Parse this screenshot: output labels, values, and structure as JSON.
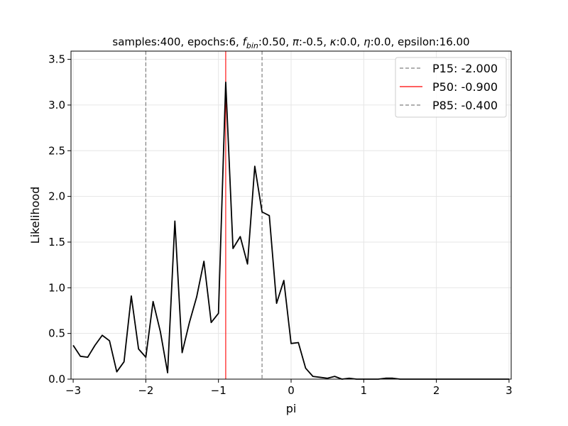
{
  "chart_data": {
    "type": "line",
    "title_parts": [
      {
        "text": "samples:400, epochs:6, ",
        "italic": false
      },
      {
        "text": "f",
        "italic": true
      },
      {
        "text": "bin",
        "italic": true,
        "sub": true
      },
      {
        "text": ":0.50, ",
        "italic": false
      },
      {
        "text": "π",
        "italic": true
      },
      {
        "text": ":-0.5, ",
        "italic": false
      },
      {
        "text": "κ",
        "italic": true
      },
      {
        "text": ":0.0, ",
        "italic": false
      },
      {
        "text": "η",
        "italic": true
      },
      {
        "text": ":0.0, epsilon:16.00",
        "italic": false
      }
    ],
    "xlabel": "pi",
    "ylabel": "Likelihood",
    "xlim": [
      -3.03,
      3.03
    ],
    "ylim": [
      0,
      3.59
    ],
    "xticks": [
      -3,
      -2,
      -1,
      0,
      1,
      2,
      3
    ],
    "xtick_labels": [
      "−3",
      "−2",
      "−1",
      "0",
      "1",
      "2",
      "3"
    ],
    "yticks": [
      0,
      0.5,
      1.0,
      1.5,
      2.0,
      2.5,
      3.0,
      3.5
    ],
    "ytick_labels": [
      "0.0",
      "0.5",
      "1.0",
      "1.5",
      "2.0",
      "2.5",
      "3.0",
      "3.5"
    ],
    "grid": true,
    "legend_position": "top-right",
    "series": [
      {
        "color": "#000000",
        "x": [
          -3.0,
          -2.9,
          -2.8,
          -2.7,
          -2.6,
          -2.5,
          -2.4,
          -2.3,
          -2.2,
          -2.1,
          -2.0,
          -1.9,
          -1.8,
          -1.7,
          -1.6,
          -1.5,
          -1.4,
          -1.3,
          -1.2,
          -1.1,
          -1.0,
          -0.9,
          -0.8,
          -0.7,
          -0.6,
          -0.5,
          -0.4,
          -0.3,
          -0.2,
          -0.1,
          0.0,
          0.1,
          0.2,
          0.3,
          0.4,
          0.5,
          0.6,
          0.7,
          0.8,
          0.9,
          1.0,
          1.1,
          1.2,
          1.3,
          1.4,
          1.5,
          1.6,
          1.7,
          1.8,
          1.9,
          2.0,
          2.1,
          2.2,
          2.3,
          2.4,
          2.5,
          2.6,
          2.7,
          2.8,
          2.9,
          3.0
        ],
        "y": [
          0.37,
          0.25,
          0.24,
          0.37,
          0.48,
          0.42,
          0.08,
          0.19,
          0.91,
          0.33,
          0.24,
          0.85,
          0.52,
          0.07,
          1.73,
          0.29,
          0.62,
          0.9,
          1.29,
          0.62,
          0.72,
          3.25,
          1.43,
          1.56,
          1.26,
          2.33,
          1.83,
          1.79,
          0.83,
          1.08,
          0.39,
          0.4,
          0.12,
          0.03,
          0.02,
          0.01,
          0.03,
          0.0,
          0.01,
          0.0,
          0.0,
          0.0,
          0.0,
          0.01,
          0.01,
          0.0,
          0.0,
          0.0,
          0.0,
          0.0,
          0.0,
          0.0,
          0.0,
          0.0,
          0.0,
          0.0,
          0.0,
          0.0,
          0.0,
          0.0,
          0.0
        ]
      }
    ],
    "reference_lines": [
      {
        "name": "P15: -2.000",
        "x": -2.0,
        "color": "#808080",
        "style": "dashed"
      },
      {
        "name": "P50: -0.900",
        "x": -0.9,
        "color": "#ff0000",
        "style": "solid"
      },
      {
        "name": "P85: -0.400",
        "x": -0.4,
        "color": "#808080",
        "style": "dashed"
      }
    ]
  }
}
